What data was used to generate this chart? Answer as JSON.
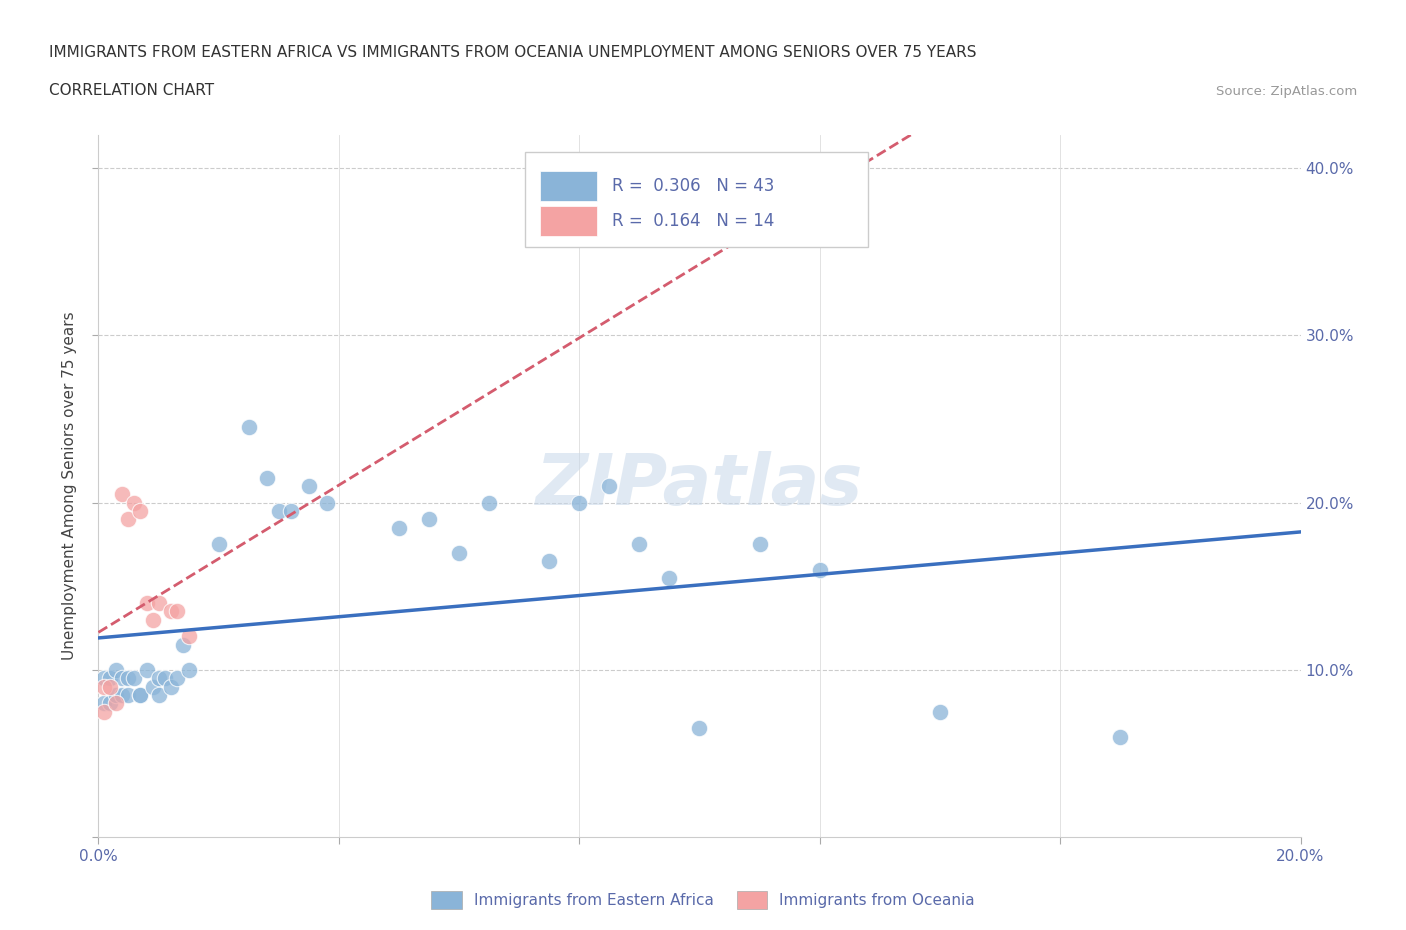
{
  "title_line1": "IMMIGRANTS FROM EASTERN AFRICA VS IMMIGRANTS FROM OCEANIA UNEMPLOYMENT AMONG SENIORS OVER 75 YEARS",
  "title_line2": "CORRELATION CHART",
  "source_text": "Source: ZipAtlas.com",
  "ylabel": "Unemployment Among Seniors over 75 years",
  "xlim": [
    0.0,
    0.2
  ],
  "ylim": [
    0.0,
    0.42
  ],
  "watermark": "ZIPatlas",
  "legend_r1": "0.306",
  "legend_n1": "43",
  "legend_r2": "0.164",
  "legend_n2": "14",
  "color_eastern": "#8ab4d8",
  "color_oceania": "#f4a3a3",
  "color_line_eastern": "#3a6fbf",
  "color_line_oceania": "#d45c6e",
  "eastern_africa_x": [
    0.001,
    0.001,
    0.002,
    0.002,
    0.003,
    0.003,
    0.004,
    0.004,
    0.005,
    0.005,
    0.006,
    0.007,
    0.007,
    0.008,
    0.009,
    0.01,
    0.01,
    0.011,
    0.012,
    0.013,
    0.014,
    0.015,
    0.02,
    0.025,
    0.028,
    0.03,
    0.032,
    0.035,
    0.038,
    0.05,
    0.055,
    0.06,
    0.065,
    0.075,
    0.08,
    0.085,
    0.09,
    0.095,
    0.1,
    0.11,
    0.12,
    0.14,
    0.17
  ],
  "eastern_africa_y": [
    0.095,
    0.08,
    0.095,
    0.08,
    0.1,
    0.085,
    0.095,
    0.085,
    0.095,
    0.085,
    0.095,
    0.085,
    0.085,
    0.1,
    0.09,
    0.095,
    0.085,
    0.095,
    0.09,
    0.095,
    0.115,
    0.1,
    0.175,
    0.245,
    0.215,
    0.195,
    0.195,
    0.21,
    0.2,
    0.185,
    0.19,
    0.17,
    0.2,
    0.165,
    0.2,
    0.21,
    0.175,
    0.155,
    0.065,
    0.175,
    0.16,
    0.075,
    0.06
  ],
  "oceania_x": [
    0.001,
    0.001,
    0.002,
    0.003,
    0.004,
    0.005,
    0.006,
    0.007,
    0.008,
    0.009,
    0.01,
    0.012,
    0.013,
    0.015
  ],
  "oceania_y": [
    0.09,
    0.075,
    0.09,
    0.08,
    0.205,
    0.19,
    0.2,
    0.195,
    0.14,
    0.13,
    0.14,
    0.135,
    0.135,
    0.12
  ]
}
